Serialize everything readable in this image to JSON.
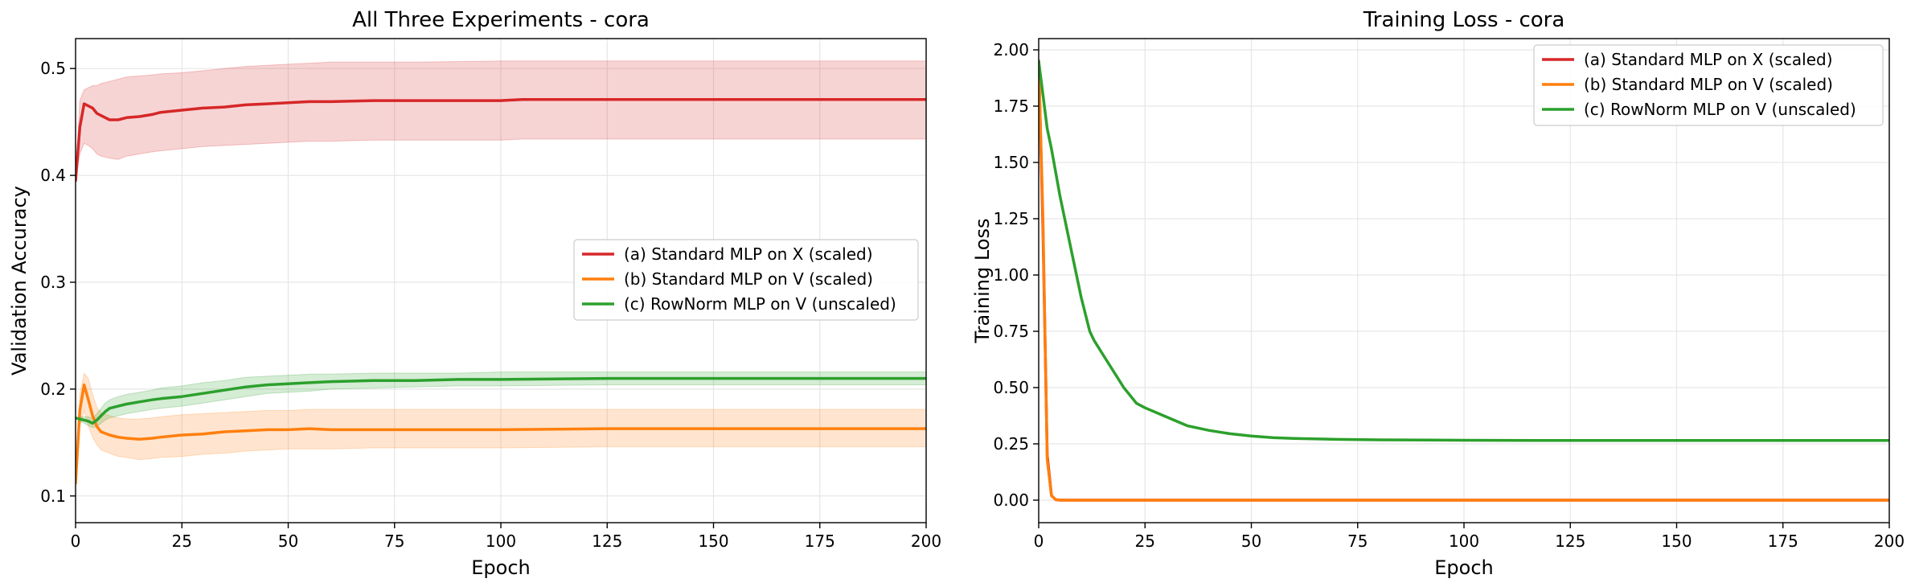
{
  "chart_data": [
    {
      "type": "line",
      "title": "All Three Experiments - cora",
      "xlabel": "Epoch",
      "ylabel": "Validation Accuracy",
      "xlim": [
        0,
        200
      ],
      "ylim": [
        0.075,
        0.528
      ],
      "xticks": [
        0,
        25,
        50,
        75,
        100,
        125,
        150,
        175,
        200
      ],
      "yticks": [
        0.1,
        0.2,
        0.3,
        0.4,
        0.5
      ],
      "grid": true,
      "legend_position": "center-right",
      "series": [
        {
          "name": "(a) Standard MLP on X (scaled)",
          "color": "#d62728",
          "x": [
            0,
            1,
            2,
            3,
            4,
            5,
            6,
            8,
            10,
            12,
            15,
            18,
            20,
            25,
            30,
            35,
            40,
            45,
            50,
            55,
            60,
            70,
            80,
            100,
            105,
            150,
            200
          ],
          "y": [
            0.395,
            0.445,
            0.467,
            0.465,
            0.463,
            0.458,
            0.456,
            0.452,
            0.452,
            0.454,
            0.455,
            0.457,
            0.459,
            0.461,
            0.463,
            0.464,
            0.466,
            0.467,
            0.468,
            0.469,
            0.469,
            0.47,
            0.47,
            0.47,
            0.471,
            0.471,
            0.471
          ],
          "lower": [
            0.395,
            0.42,
            0.43,
            0.428,
            0.425,
            0.42,
            0.418,
            0.416,
            0.415,
            0.418,
            0.42,
            0.422,
            0.423,
            0.425,
            0.427,
            0.428,
            0.429,
            0.43,
            0.431,
            0.432,
            0.432,
            0.433,
            0.433,
            0.433,
            0.434,
            0.434,
            0.434
          ],
          "upper": [
            0.395,
            0.47,
            0.48,
            0.482,
            0.484,
            0.484,
            0.486,
            0.488,
            0.49,
            0.492,
            0.493,
            0.494,
            0.495,
            0.496,
            0.498,
            0.5,
            0.502,
            0.503,
            0.504,
            0.505,
            0.506,
            0.506,
            0.506,
            0.507,
            0.507,
            0.507,
            0.507
          ]
        },
        {
          "name": "(b) Standard MLP on V (scaled)",
          "color": "#ff7f0e",
          "x": [
            0,
            1,
            2,
            3,
            4,
            5,
            6,
            8,
            10,
            12,
            15,
            18,
            20,
            25,
            30,
            35,
            40,
            45,
            50,
            55,
            60,
            70,
            80,
            90,
            100,
            125,
            150,
            200
          ],
          "y": [
            0.112,
            0.18,
            0.204,
            0.19,
            0.175,
            0.165,
            0.16,
            0.157,
            0.155,
            0.154,
            0.153,
            0.154,
            0.155,
            0.157,
            0.158,
            0.16,
            0.161,
            0.162,
            0.162,
            0.163,
            0.162,
            0.162,
            0.162,
            0.162,
            0.162,
            0.163,
            0.163,
            0.163
          ],
          "lower": [
            0.112,
            0.165,
            0.18,
            0.165,
            0.155,
            0.148,
            0.143,
            0.14,
            0.137,
            0.136,
            0.134,
            0.135,
            0.136,
            0.137,
            0.139,
            0.14,
            0.142,
            0.143,
            0.144,
            0.144,
            0.144,
            0.145,
            0.145,
            0.145,
            0.145,
            0.146,
            0.146,
            0.146
          ],
          "upper": [
            0.112,
            0.195,
            0.215,
            0.21,
            0.195,
            0.183,
            0.178,
            0.175,
            0.173,
            0.172,
            0.172,
            0.173,
            0.174,
            0.176,
            0.177,
            0.178,
            0.179,
            0.18,
            0.18,
            0.181,
            0.181,
            0.181,
            0.181,
            0.181,
            0.181,
            0.181,
            0.181,
            0.181
          ]
        },
        {
          "name": "(c) RowNorm MLP on V (unscaled)",
          "color": "#2ca02c",
          "x": [
            0,
            1,
            2,
            3,
            4,
            5,
            6,
            7,
            8,
            10,
            12,
            15,
            18,
            20,
            25,
            30,
            35,
            40,
            45,
            50,
            55,
            60,
            70,
            80,
            90,
            100,
            125,
            150,
            200
          ],
          "y": [
            0.173,
            0.172,
            0.171,
            0.17,
            0.168,
            0.171,
            0.175,
            0.179,
            0.182,
            0.184,
            0.186,
            0.188,
            0.19,
            0.191,
            0.193,
            0.196,
            0.199,
            0.202,
            0.204,
            0.205,
            0.206,
            0.207,
            0.208,
            0.208,
            0.209,
            0.209,
            0.21,
            0.21,
            0.21
          ],
          "lower": [
            0.173,
            0.17,
            0.168,
            0.166,
            0.164,
            0.165,
            0.168,
            0.171,
            0.173,
            0.175,
            0.177,
            0.179,
            0.181,
            0.182,
            0.184,
            0.187,
            0.19,
            0.193,
            0.196,
            0.197,
            0.198,
            0.2,
            0.201,
            0.202,
            0.203,
            0.203,
            0.204,
            0.204,
            0.204
          ],
          "upper": [
            0.173,
            0.174,
            0.174,
            0.174,
            0.173,
            0.177,
            0.182,
            0.187,
            0.19,
            0.193,
            0.195,
            0.197,
            0.199,
            0.201,
            0.203,
            0.206,
            0.208,
            0.211,
            0.212,
            0.213,
            0.214,
            0.214,
            0.215,
            0.215,
            0.215,
            0.216,
            0.216,
            0.216,
            0.216
          ]
        }
      ]
    },
    {
      "type": "line",
      "title": "Training Loss - cora",
      "xlabel": "Epoch",
      "ylabel": "Training Loss",
      "xlim": [
        0,
        200
      ],
      "ylim": [
        -0.1,
        2.05
      ],
      "xticks": [
        0,
        25,
        50,
        75,
        100,
        125,
        150,
        175,
        200
      ],
      "yticks": [
        0.0,
        0.25,
        0.5,
        0.75,
        1.0,
        1.25,
        1.5,
        1.75,
        2.0
      ],
      "ytick_labels": [
        "0.00",
        "0.25",
        "0.50",
        "0.75",
        "1.00",
        "1.25",
        "1.50",
        "1.75",
        "2.00"
      ],
      "grid": true,
      "legend_position": "top-right",
      "series": [
        {
          "name": "(a) Standard MLP on X (scaled)",
          "color": "#d62728",
          "x": [
            0,
            1,
            2,
            3,
            4,
            5,
            10,
            50,
            100,
            200
          ],
          "y": [
            1.95,
            1.2,
            0.2,
            0.02,
            0.002,
            0.0,
            0.0,
            0.0,
            0.0,
            0.0
          ]
        },
        {
          "name": "(b) Standard MLP on V (scaled)",
          "color": "#ff7f0e",
          "x": [
            0,
            1,
            2,
            3,
            4,
            5,
            10,
            50,
            100,
            200
          ],
          "y": [
            1.95,
            1.25,
            0.18,
            0.02,
            0.002,
            0.0,
            0.0,
            0.0,
            0.0,
            0.0
          ]
        },
        {
          "name": "(c) RowNorm MLP on V (unscaled)",
          "color": "#2ca02c",
          "x": [
            0,
            1,
            2,
            3,
            5,
            8,
            10,
            12,
            13,
            15,
            20,
            23,
            25,
            30,
            35,
            40,
            45,
            50,
            55,
            60,
            70,
            80,
            100,
            125,
            150,
            175,
            200
          ],
          "y": [
            1.95,
            1.8,
            1.65,
            1.56,
            1.35,
            1.08,
            0.9,
            0.75,
            0.71,
            0.65,
            0.5,
            0.43,
            0.41,
            0.37,
            0.33,
            0.31,
            0.295,
            0.285,
            0.278,
            0.274,
            0.27,
            0.268,
            0.266,
            0.265,
            0.265,
            0.265,
            0.265
          ]
        }
      ]
    }
  ]
}
